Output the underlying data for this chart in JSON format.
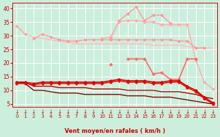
{
  "x": [
    0,
    1,
    2,
    3,
    4,
    5,
    6,
    7,
    8,
    9,
    10,
    11,
    12,
    13,
    14,
    15,
    16,
    17,
    18,
    19,
    20,
    21,
    22,
    23
  ],
  "series": [
    {
      "color": "#ff9999",
      "lw": 1.0,
      "marker": "D",
      "ms": 2.5,
      "y": [
        null,
        null,
        null,
        null,
        null,
        null,
        null,
        null,
        null,
        null,
        null,
        29.0,
        35.5,
        38.0,
        40.5,
        35.5,
        37.5,
        37.5,
        34.5,
        null,
        null,
        null,
        null,
        null
      ]
    },
    {
      "color": "#ffaaaa",
      "lw": 1.0,
      "marker": "D",
      "ms": 2.5,
      "y": [
        33.5,
        30.5,
        null,
        null,
        null,
        null,
        null,
        null,
        null,
        null,
        29.0,
        29.5,
        35.0,
        35.5,
        35.5,
        35.0,
        35.0,
        34.0,
        34.0,
        34.0,
        34.0,
        21.0,
        13.0,
        10.5
      ]
    },
    {
      "color": "#ffbbbb",
      "lw": 1.0,
      "marker": null,
      "ms": 0,
      "y": [
        33.5,
        30.5,
        29.5,
        29.0,
        28.5,
        28.0,
        27.5,
        27.0,
        27.0,
        27.0,
        27.0,
        27.0,
        27.0,
        27.0,
        27.0,
        27.0,
        26.5,
        26.5,
        26.5,
        26.5,
        26.0,
        25.5,
        25.5,
        25.5
      ]
    },
    {
      "color": "#ff9999",
      "lw": 1.0,
      "marker": "D",
      "ms": 2.5,
      "y": [
        null,
        null,
        29.0,
        30.5,
        29.5,
        28.5,
        28.0,
        28.0,
        28.5,
        28.5,
        28.5,
        28.5,
        28.5,
        28.5,
        28.5,
        28.5,
        28.5,
        28.5,
        28.5,
        28.0,
        28.0,
        25.5,
        25.5,
        null
      ]
    },
    {
      "color": "#ff6666",
      "lw": 1.2,
      "marker": "D",
      "ms": 2.5,
      "y": [
        null,
        null,
        null,
        null,
        null,
        null,
        null,
        null,
        null,
        null,
        null,
        19.5,
        null,
        21.5,
        21.5,
        21.5,
        16.0,
        16.5,
        14.0,
        14.0,
        21.5,
        21.5,
        null,
        null
      ]
    },
    {
      "color": "#cc0000",
      "lw": 1.2,
      "marker": "D",
      "ms": 2.5,
      "y": [
        13.0,
        13.0,
        12.5,
        13.0,
        13.0,
        13.0,
        13.0,
        13.0,
        13.0,
        13.0,
        13.0,
        13.5,
        14.0,
        13.5,
        13.5,
        13.5,
        13.0,
        13.0,
        13.5,
        13.5,
        11.5,
        10.0,
        7.5,
        5.5
      ]
    },
    {
      "color": "#ee0000",
      "lw": 1.1,
      "marker": "D",
      "ms": 2.5,
      "y": [
        12.5,
        12.5,
        12.0,
        12.5,
        12.5,
        12.5,
        12.5,
        12.5,
        12.5,
        12.5,
        12.5,
        13.0,
        13.5,
        13.0,
        13.0,
        13.0,
        12.5,
        12.5,
        13.0,
        13.0,
        11.0,
        9.5,
        7.0,
        5.0
      ]
    },
    {
      "color": "#aa0000",
      "lw": 1.0,
      "marker": null,
      "ms": 0,
      "y": [
        13.0,
        13.0,
        11.5,
        11.5,
        11.5,
        11.0,
        11.0,
        11.0,
        11.0,
        10.5,
        10.5,
        10.5,
        10.5,
        10.0,
        10.0,
        10.0,
        10.0,
        9.5,
        9.5,
        9.5,
        9.0,
        8.5,
        7.5,
        7.0
      ]
    },
    {
      "color": "#770000",
      "lw": 1.0,
      "marker": null,
      "ms": 0,
      "y": [
        13.0,
        12.5,
        10.0,
        10.0,
        9.5,
        9.0,
        9.0,
        9.0,
        8.5,
        8.5,
        8.5,
        8.5,
        8.5,
        8.0,
        8.0,
        8.0,
        7.5,
        7.5,
        7.5,
        7.0,
        6.5,
        6.0,
        5.5,
        5.0
      ]
    }
  ],
  "xlim": [
    -0.5,
    23.5
  ],
  "ylim": [
    4,
    42
  ],
  "yticks": [
    5,
    10,
    15,
    20,
    25,
    30,
    35,
    40
  ],
  "xticks": [
    0,
    1,
    2,
    3,
    4,
    5,
    6,
    7,
    8,
    9,
    10,
    11,
    12,
    13,
    14,
    15,
    16,
    17,
    18,
    19,
    20,
    21,
    22,
    23
  ],
  "xlabel": "Vent moyen/en rafales ( km/h )",
  "bg_color": "#cceedd",
  "grid_color": "#ffffff",
  "tick_color": "#cc0000",
  "label_color": "#cc0000"
}
